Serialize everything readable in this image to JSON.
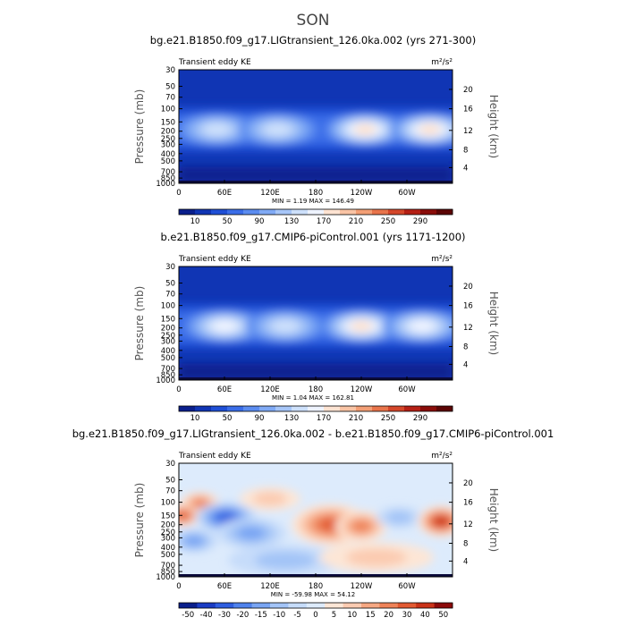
{
  "figure_title": "SON",
  "chart_data": [
    {
      "type": "heatmap",
      "title": "bg.e21.B1850.f09_g17.LIGtransient_126.0ka.002 (yrs 271-300)",
      "left_label": "Transient eddy KE",
      "units": "m²/s²",
      "ylabel": "Pressure (mb)",
      "ylabel_right": "Height (km)",
      "x_ticks": [
        "0",
        "60E",
        "120E",
        "180",
        "120W",
        "60W"
      ],
      "y_ticks": [
        "30",
        "50",
        "70",
        "100",
        "150",
        "200",
        "250",
        "300",
        "400",
        "500",
        "700",
        "850",
        "1000"
      ],
      "y2_ticks": [
        "20",
        "16",
        "12",
        "8",
        "4"
      ],
      "min_max_text": "MIN =     1.19   MAX = 146.49",
      "min": 1.19,
      "max": 146.49,
      "colorbar_labels": [
        "10",
        "50",
        "90",
        "130",
        "170",
        "210",
        "250",
        "290"
      ],
      "jet_cores_lon": [
        50,
        130,
        245,
        330
      ],
      "jet_core_levels": [
        0.55,
        0.5,
        0.9,
        0.95
      ]
    },
    {
      "type": "heatmap",
      "title": "b.e21.B1850.f09_g17.CMIP6-piControl.001 (yrs 1171-1200)",
      "left_label": "Transient eddy KE",
      "units": "m²/s²",
      "ylabel": "Pressure (mb)",
      "ylabel_right": "Height (km)",
      "x_ticks": [
        "0",
        "60E",
        "120E",
        "180",
        "120W",
        "60W"
      ],
      "y_ticks": [
        "30",
        "50",
        "70",
        "100",
        "150",
        "200",
        "250",
        "300",
        "400",
        "500",
        "700",
        "850",
        "1000"
      ],
      "y2_ticks": [
        "20",
        "16",
        "12",
        "8",
        "4"
      ],
      "min_max_text": "MIN =     1.04   MAX = 162.81",
      "min": 1.04,
      "max": 162.81,
      "colorbar_labels": [
        "10",
        "50",
        "90",
        "130",
        "170",
        "210",
        "250",
        "290"
      ],
      "jet_cores_lon": [
        60,
        140,
        240,
        320
      ],
      "jet_core_levels": [
        0.85,
        0.5,
        0.9,
        0.75
      ]
    },
    {
      "type": "heatmap",
      "title": "bg.e21.B1850.f09_g17.LIGtransient_126.0ka.002 - b.e21.B1850.f09_g17.CMIP6-piControl.001",
      "left_label": "Transient eddy KE",
      "units": "m²/s²",
      "ylabel": "Pressure (mb)",
      "ylabel_right": "Height (km)",
      "x_ticks": [
        "0",
        "60E",
        "120E",
        "180",
        "120W",
        "60W"
      ],
      "y_ticks": [
        "30",
        "50",
        "70",
        "100",
        "150",
        "200",
        "250",
        "300",
        "400",
        "500",
        "700",
        "850",
        "1000"
      ],
      "y2_ticks": [
        "20",
        "16",
        "12",
        "8",
        "4"
      ],
      "min_max_text": "MIN =  -59.98   MAX =  54.12",
      "min": -59.98,
      "max": 54.12,
      "colorbar_labels": [
        "-50",
        "-40",
        "-30",
        "-20",
        "-15",
        "-10",
        "-5",
        "0",
        "5",
        "10",
        "15",
        "20",
        "30",
        "40",
        "50"
      ]
    }
  ],
  "colors": {
    "kinetic_scale": [
      "#0a1f8c",
      "#1035b4",
      "#1f4fd6",
      "#3a6de8",
      "#5b8cf0",
      "#80aaf5",
      "#a7c6f8",
      "#cde0fb",
      "#eef3ff",
      "#fde3d2",
      "#f9c4a5",
      "#f39f76",
      "#e8744b",
      "#d4472a",
      "#b52015",
      "#8a0d0a",
      "#5c0505"
    ],
    "diff_scale": [
      "#0a1f8c",
      "#1a3cc4",
      "#2f5ee0",
      "#4f82ec",
      "#79a5f3",
      "#a3c4f7",
      "#c6dcfa",
      "#ddebfc",
      "#fde6d6",
      "#fbcbb1",
      "#f6a883",
      "#ee8258",
      "#e25a32",
      "#c93218",
      "#8c0a0a"
    ]
  }
}
